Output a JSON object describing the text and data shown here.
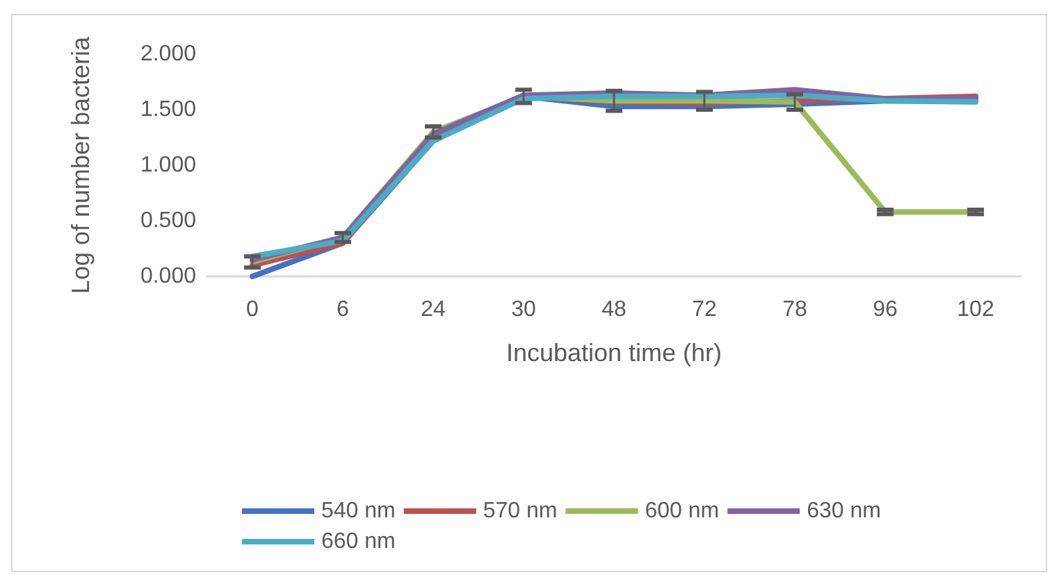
{
  "chart_data": {
    "type": "line",
    "xlabel": "Incubation time (hr)",
    "ylabel": "Log of number bacteria",
    "categories": [
      "0",
      "6",
      "24",
      "30",
      "48",
      "72",
      "78",
      "96",
      "102"
    ],
    "series": [
      {
        "name": "540 nm",
        "color": "#4472c4",
        "values": [
          0.0,
          0.3,
          1.22,
          1.62,
          1.53,
          1.53,
          1.55,
          1.58,
          1.58
        ]
      },
      {
        "name": "570 nm",
        "color": "#c0504d",
        "values": [
          0.1,
          0.3,
          1.25,
          1.62,
          1.57,
          1.56,
          1.58,
          1.6,
          1.62
        ]
      },
      {
        "name": "600 nm",
        "color": "#9bbb59",
        "values": [
          0.13,
          0.35,
          1.3,
          1.62,
          1.58,
          1.58,
          1.57,
          0.58,
          0.58
        ],
        "errors": [
          0.05,
          0.04,
          0.05,
          0.06,
          0.09,
          0.08,
          0.07,
          0.02,
          0.02
        ]
      },
      {
        "name": "630 nm",
        "color": "#8064a2",
        "values": [
          0.15,
          0.35,
          1.28,
          1.63,
          1.65,
          1.63,
          1.68,
          1.6,
          1.6
        ]
      },
      {
        "name": "660 nm",
        "color": "#4bacc6",
        "values": [
          0.18,
          0.32,
          1.22,
          1.6,
          1.62,
          1.62,
          1.63,
          1.58,
          1.57
        ]
      }
    ],
    "ylim": [
      0,
      2
    ],
    "yticks": [
      {
        "value": 0,
        "label": "0.000"
      },
      {
        "value": 0.5,
        "label": "0.500"
      },
      {
        "value": 1,
        "label": "1.000"
      },
      {
        "value": 1.5,
        "label": "1.500"
      },
      {
        "value": 2,
        "label": "2.000"
      }
    ],
    "grid": false,
    "legend": "bottom",
    "marker": "none",
    "line_style": "solid"
  }
}
